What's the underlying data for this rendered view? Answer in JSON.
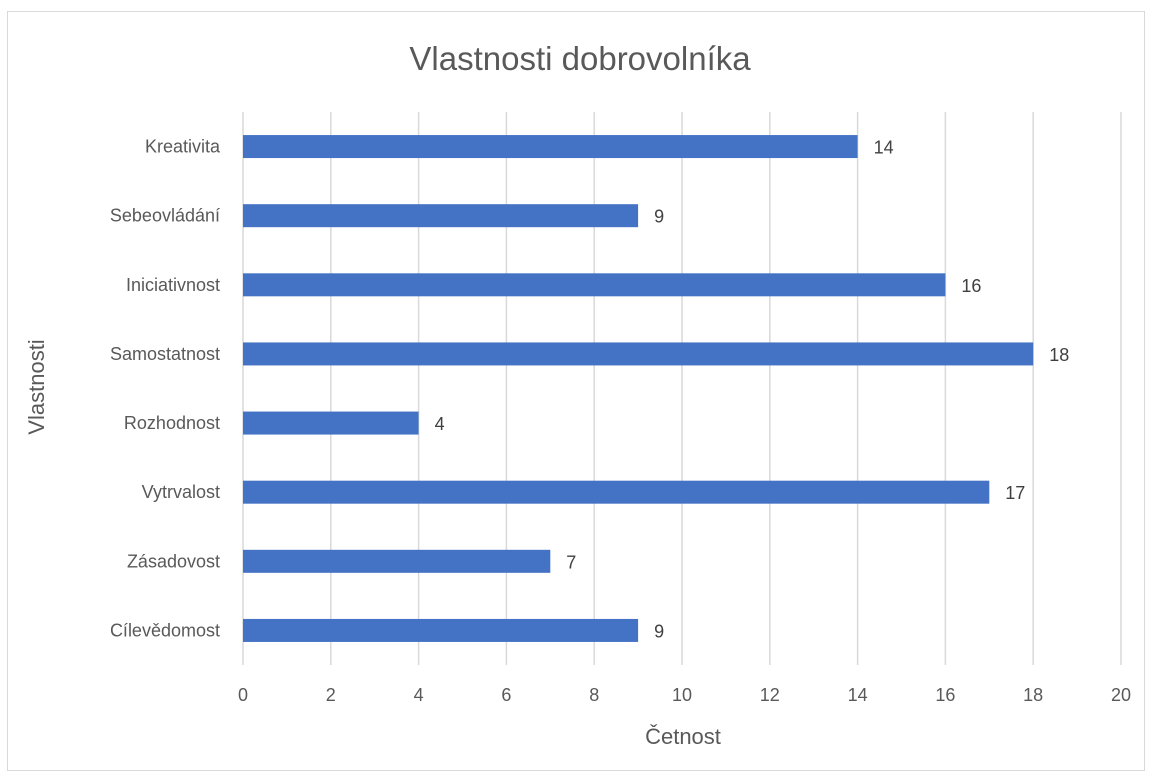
{
  "chart_data": {
    "type": "bar",
    "orientation": "horizontal",
    "title": "Vlastnosti dobrovolníka",
    "xlabel": "Četnost",
    "ylabel": "Vlastnosti",
    "categories": [
      "Kreativita",
      "Sebeovládání",
      "Iniciativnost",
      "Samostatnost",
      "Rozhodnost",
      "Vytrvalost",
      "Zásadovost",
      "Cílevědomost"
    ],
    "values": [
      14,
      9,
      16,
      18,
      4,
      17,
      7,
      9
    ],
    "xlim": [
      0,
      20
    ],
    "xticks": [
      0,
      2,
      4,
      6,
      8,
      10,
      12,
      14,
      16,
      18,
      20
    ],
    "grid": true,
    "data_labels": true,
    "bar_color": "#4472C4",
    "grid_color": "#d9d9d9"
  }
}
